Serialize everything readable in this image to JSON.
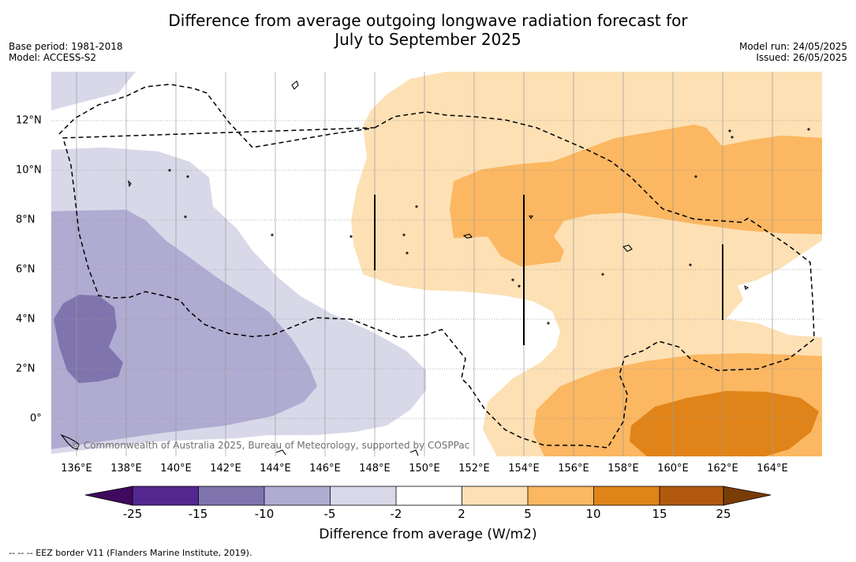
{
  "title_line1": "Difference from average outgoing longwave radiation forecast for",
  "title_line2": "July to September 2025",
  "base_period": "Base period: 1981-2018",
  "model": "Model: ACCESS-S2",
  "model_run": "Model run: 24/05/2025",
  "issued": "Issued: 26/05/2025",
  "copyright": "© Commonwealth of Australia 2025, Bureau of Meteorology, supported by COSPPac",
  "lon_labels": [
    "136°E",
    "138°E",
    "140°E",
    "142°E",
    "144°E",
    "146°E",
    "148°E",
    "150°E",
    "152°E",
    "154°E",
    "156°E",
    "158°E",
    "160°E",
    "162°E",
    "164°E"
  ],
  "lat_labels": [
    "12°N",
    "10°N",
    "8°N",
    "6°N",
    "4°N",
    "2°N",
    "0°"
  ],
  "colorbar": {
    "title": "Difference from average (W/m2)",
    "ticks": [
      "-25",
      "-15",
      "-10",
      "-5",
      "-2",
      "2",
      "5",
      "10",
      "15",
      "25"
    ],
    "colors": {
      "below_-25": "#3f0a5e",
      "-25_-15": "#54278f",
      "-15_-10": "#7f74ae",
      "-10_-5": "#b0abd1",
      "-5_-2": "#d8d8e9",
      "-2_2": "#ffffff",
      "2_5": "#fde0b4",
      "5_10": "#fbb761",
      "10_15": "#e08419",
      "15_25": "#b15a0e",
      "above_25": "#7a3c07"
    }
  },
  "footer": "--  --  -- EEZ border V11 (Flanders Marine Institute, 2019)."
}
